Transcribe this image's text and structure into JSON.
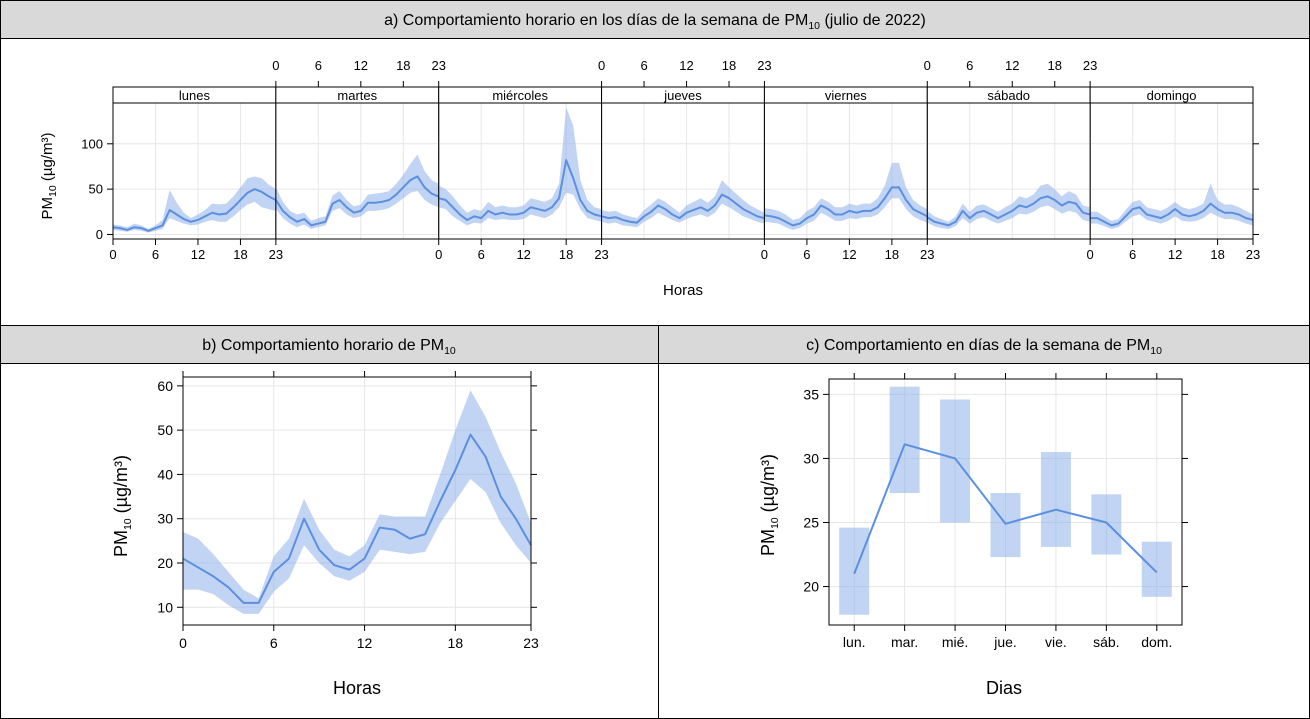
{
  "chart_data": [
    {
      "id": "a",
      "type": "line",
      "title_prefix": "a)  Comportamiento horario en los días de la semana de PM",
      "title_sub": "10",
      "title_suffix": " (julio de 2022)",
      "xlabel": "Horas",
      "ylabel_main": "PM",
      "ylabel_sub": "10",
      "ylabel_unit": " (µg/m³)",
      "ylim": [
        -5,
        145
      ],
      "yticks": [
        0,
        50,
        100
      ],
      "xticks": [
        0,
        6,
        12,
        18,
        23
      ],
      "xlim": [
        0,
        23
      ],
      "uncertainty_band": true,
      "panels": [
        {
          "label": "lunes",
          "mean": [
            8,
            7,
            5,
            8,
            7,
            4,
            7,
            10,
            27,
            22,
            17,
            14,
            16,
            20,
            24,
            22,
            23,
            30,
            38,
            46,
            50,
            47,
            42,
            38
          ],
          "lower": [
            5,
            4,
            3,
            5,
            4,
            2,
            4,
            6,
            18,
            15,
            12,
            10,
            11,
            14,
            16,
            14,
            14,
            20,
            27,
            33,
            36,
            30,
            28,
            26
          ],
          "upper": [
            11,
            10,
            8,
            12,
            10,
            6,
            10,
            16,
            49,
            35,
            24,
            18,
            22,
            27,
            34,
            33,
            34,
            42,
            52,
            62,
            64,
            62,
            55,
            50
          ]
        },
        {
          "label": "martes",
          "mean": [
            38,
            26,
            19,
            14,
            17,
            10,
            12,
            14,
            34,
            38,
            30,
            24,
            26,
            35,
            35,
            36,
            38,
            44,
            52,
            60,
            64,
            52,
            45,
            42
          ],
          "lower": [
            28,
            18,
            12,
            8,
            11,
            6,
            8,
            10,
            26,
            29,
            22,
            18,
            20,
            26,
            26,
            27,
            29,
            34,
            40,
            46,
            48,
            38,
            33,
            30
          ],
          "upper": [
            52,
            36,
            26,
            22,
            24,
            15,
            18,
            20,
            43,
            48,
            38,
            31,
            33,
            44,
            45,
            46,
            48,
            56,
            66,
            78,
            88,
            70,
            60,
            56
          ]
        },
        {
          "label": "miércoles",
          "mean": [
            40,
            38,
            30,
            22,
            16,
            20,
            18,
            26,
            22,
            24,
            22,
            22,
            24,
            30,
            28,
            26,
            30,
            40,
            82,
            62,
            38,
            26,
            22,
            20
          ],
          "lower": [
            30,
            28,
            20,
            15,
            10,
            13,
            12,
            18,
            16,
            17,
            16,
            16,
            17,
            22,
            20,
            18,
            22,
            30,
            46,
            44,
            28,
            18,
            16,
            14
          ],
          "upper": [
            54,
            50,
            42,
            32,
            24,
            28,
            26,
            36,
            30,
            32,
            30,
            30,
            32,
            40,
            38,
            36,
            40,
            56,
            140,
            120,
            60,
            38,
            30,
            28
          ]
        },
        {
          "label": "jueves",
          "mean": [
            20,
            18,
            19,
            16,
            14,
            13,
            20,
            25,
            32,
            28,
            22,
            18,
            24,
            27,
            30,
            26,
            32,
            44,
            40,
            34,
            28,
            24,
            20,
            18
          ],
          "lower": [
            14,
            12,
            13,
            10,
            9,
            8,
            14,
            18,
            24,
            20,
            16,
            13,
            17,
            20,
            22,
            19,
            24,
            34,
            30,
            25,
            20,
            17,
            14,
            12
          ],
          "upper": [
            27,
            25,
            26,
            22,
            20,
            18,
            27,
            33,
            40,
            36,
            30,
            24,
            32,
            36,
            40,
            35,
            42,
            60,
            52,
            45,
            38,
            32,
            28,
            24
          ]
        },
        {
          "label": "viernes",
          "mean": [
            21,
            20,
            18,
            14,
            10,
            12,
            18,
            22,
            32,
            28,
            22,
            22,
            26,
            24,
            26,
            26,
            30,
            40,
            52,
            52,
            38,
            28,
            24,
            20
          ],
          "lower": [
            14,
            13,
            12,
            8,
            5,
            7,
            12,
            15,
            24,
            20,
            15,
            15,
            18,
            17,
            19,
            19,
            22,
            30,
            40,
            40,
            28,
            20,
            16,
            13
          ],
          "upper": [
            29,
            28,
            26,
            22,
            16,
            18,
            26,
            30,
            40,
            36,
            30,
            30,
            34,
            32,
            34,
            34,
            40,
            54,
            79,
            79,
            52,
            38,
            32,
            28
          ]
        },
        {
          "label": "sábado",
          "mean": [
            19,
            14,
            12,
            10,
            14,
            26,
            18,
            24,
            26,
            22,
            18,
            22,
            26,
            32,
            30,
            34,
            40,
            42,
            38,
            32,
            36,
            34,
            24,
            22
          ],
          "lower": [
            13,
            9,
            7,
            6,
            9,
            18,
            12,
            17,
            19,
            15,
            12,
            15,
            18,
            23,
            22,
            25,
            30,
            32,
            28,
            23,
            26,
            24,
            16,
            14
          ],
          "upper": [
            26,
            20,
            17,
            14,
            20,
            34,
            25,
            32,
            33,
            29,
            25,
            30,
            34,
            42,
            40,
            44,
            54,
            56,
            50,
            42,
            48,
            44,
            32,
            30
          ]
        },
        {
          "label": "domingo",
          "mean": [
            18,
            18,
            14,
            10,
            12,
            20,
            28,
            30,
            22,
            20,
            18,
            22,
            28,
            22,
            20,
            22,
            26,
            34,
            28,
            24,
            24,
            22,
            18,
            16
          ],
          "lower": [
            12,
            12,
            9,
            6,
            8,
            14,
            20,
            22,
            16,
            14,
            12,
            15,
            20,
            15,
            14,
            15,
            18,
            24,
            20,
            17,
            17,
            15,
            12,
            10
          ],
          "upper": [
            25,
            25,
            20,
            15,
            17,
            27,
            36,
            38,
            30,
            28,
            26,
            30,
            36,
            30,
            28,
            30,
            34,
            56,
            38,
            33,
            33,
            30,
            26,
            22
          ]
        }
      ]
    },
    {
      "id": "b",
      "type": "line",
      "title_prefix": "b)  Comportamiento horario de PM",
      "title_sub": "10",
      "xlabel": "Horas",
      "ylabel_main": "PM",
      "ylabel_sub": "10",
      "ylabel_unit": " (µg/m³)",
      "xlim": [
        0,
        23
      ],
      "ylim": [
        6,
        62
      ],
      "xticks": [
        0,
        6,
        12,
        18,
        23
      ],
      "yticks": [
        10,
        20,
        30,
        40,
        50,
        60
      ],
      "uncertainty_band": true,
      "x": [
        0,
        1,
        2,
        3,
        4,
        5,
        6,
        7,
        8,
        9,
        10,
        11,
        12,
        13,
        14,
        15,
        16,
        17,
        18,
        19,
        20,
        21,
        22,
        23
      ],
      "mean": [
        21,
        19,
        17,
        14.5,
        11,
        11,
        18,
        21,
        30,
        23,
        19.5,
        18.5,
        21,
        28,
        27.5,
        25.5,
        26.5,
        34,
        41,
        49,
        44,
        35,
        30,
        24
      ],
      "lower": [
        14,
        14,
        13,
        10.5,
        8.5,
        8.5,
        13.5,
        16.5,
        24,
        20,
        17,
        16,
        18,
        23,
        22.5,
        22,
        22.5,
        29,
        34,
        39,
        36,
        29,
        24,
        20
      ],
      "upper": [
        27,
        25.5,
        22,
        18,
        14,
        12,
        21.5,
        25.5,
        34.5,
        27.5,
        23,
        21.5,
        24,
        31,
        30.5,
        30.5,
        30.5,
        40,
        50,
        59,
        53,
        45,
        38,
        29
      ]
    },
    {
      "id": "c",
      "type": "line",
      "title_prefix": "c)  Comportamiento en días de la semana de PM",
      "title_sub": "10",
      "xlabel": "Dias",
      "ylabel_main": "PM",
      "ylabel_sub": "10",
      "ylabel_unit": " (µg/m³)",
      "ylim": [
        17,
        36.2
      ],
      "yticks": [
        20,
        25,
        30,
        35
      ],
      "uncertainty_band": true,
      "categories": [
        "lun.",
        "mar.",
        "mié.",
        "jue.",
        "vie.",
        "sáb.",
        "dom."
      ],
      "mean": [
        21,
        31.1,
        30,
        24.9,
        26,
        25,
        21.1
      ],
      "lower": [
        17.8,
        27.3,
        25,
        22.3,
        23.1,
        22.5,
        19.2
      ],
      "upper": [
        24.6,
        35.6,
        34.6,
        27.3,
        30.5,
        27.2,
        23.5
      ]
    }
  ]
}
